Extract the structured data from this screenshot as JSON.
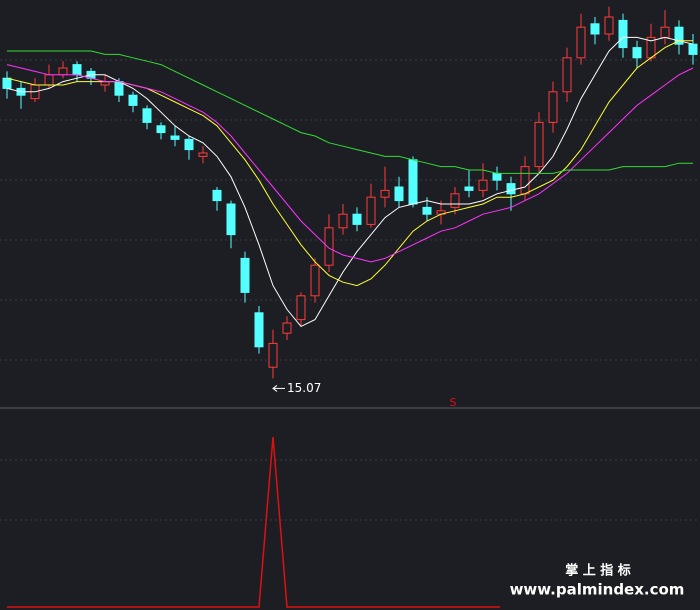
{
  "chart_data": {
    "type": "candlestick",
    "ylim": [
      14.2,
      26.2
    ],
    "up_color": "#ff3b3b",
    "down_color": "#54ffff",
    "open": [
      23.9,
      23.6,
      23.3,
      23.7,
      24.0,
      24.3,
      24.1,
      23.7,
      23.8,
      23.4,
      23.0,
      22.5,
      22.2,
      22.1,
      21.6,
      20.6,
      20.2,
      18.6,
      17.0,
      15.4,
      16.4,
      16.8,
      17.5,
      18.4,
      19.5,
      19.9,
      19.6,
      20.4,
      20.7,
      21.5,
      20.1,
      19.9,
      20.1,
      20.7,
      20.6,
      21.1,
      20.8,
      20.5,
      21.3,
      22.6,
      23.5,
      24.5,
      25.5,
      25.2,
      25.6,
      24.8,
      24.5,
      25.1,
      25.4,
      24.9
    ],
    "high": [
      24.1,
      23.8,
      23.9,
      24.3,
      24.4,
      24.4,
      24.2,
      24.0,
      23.9,
      23.5,
      23.1,
      22.6,
      22.5,
      22.2,
      21.9,
      20.7,
      20.3,
      18.8,
      17.2,
      16.5,
      16.9,
      17.6,
      18.6,
      19.9,
      20.2,
      20.1,
      20.8,
      21.3,
      21.0,
      21.6,
      20.4,
      20.3,
      20.7,
      21.2,
      21.4,
      21.3,
      21.0,
      21.6,
      22.9,
      23.8,
      24.8,
      25.8,
      25.7,
      26.0,
      25.8,
      25.0,
      25.5,
      25.9,
      25.6,
      25.2
    ],
    "low": [
      23.3,
      23.0,
      23.2,
      23.6,
      23.9,
      23.8,
      23.7,
      23.5,
      23.2,
      22.9,
      22.4,
      22.1,
      21.9,
      21.5,
      21.4,
      20.0,
      18.9,
      17.3,
      15.8,
      15.07,
      16.2,
      16.6,
      17.3,
      18.2,
      19.3,
      19.4,
      19.5,
      20.1,
      20.1,
      20.1,
      19.7,
      19.6,
      19.9,
      20.4,
      20.4,
      20.6,
      20.0,
      20.3,
      21.1,
      22.3,
      23.2,
      24.3,
      24.9,
      25.0,
      24.5,
      24.2,
      24.4,
      24.9,
      24.6,
      24.3
    ],
    "close": [
      23.6,
      23.4,
      23.7,
      24.0,
      24.2,
      24.0,
      23.9,
      23.8,
      23.4,
      23.1,
      22.6,
      22.3,
      22.1,
      21.8,
      21.7,
      20.3,
      19.3,
      17.6,
      16.0,
      16.1,
      16.7,
      17.5,
      18.4,
      19.5,
      19.9,
      19.6,
      20.4,
      20.6,
      20.3,
      20.2,
      19.9,
      20.0,
      20.5,
      20.6,
      20.9,
      20.9,
      20.5,
      21.3,
      22.6,
      23.5,
      24.5,
      25.4,
      25.2,
      25.7,
      24.8,
      24.5,
      25.1,
      25.4,
      24.9,
      24.6
    ],
    "series": [
      {
        "color": "#ffffff",
        "values": [
          23.6,
          23.5,
          23.5,
          23.6,
          23.8,
          23.9,
          24.0,
          24.0,
          23.8,
          23.6,
          23.3,
          22.9,
          22.5,
          22.2,
          22.0,
          21.6,
          21.0,
          20.1,
          19.0,
          17.8,
          17.1,
          16.6,
          16.8,
          17.5,
          18.2,
          18.8,
          19.3,
          19.8,
          20.1,
          20.2,
          20.3,
          20.2,
          20.2,
          20.2,
          20.3,
          20.5,
          20.6,
          20.7,
          21.1,
          21.6,
          22.4,
          23.3,
          24.0,
          24.7,
          25.1,
          25.1,
          25.0,
          25.1,
          25.0,
          24.9
        ]
      },
      {
        "color": "#ffff33",
        "values": [
          23.9,
          23.8,
          23.7,
          23.7,
          23.7,
          23.8,
          23.8,
          23.8,
          23.8,
          23.7,
          23.6,
          23.4,
          23.2,
          23.0,
          22.8,
          22.5,
          22.0,
          21.5,
          20.9,
          20.2,
          19.6,
          19.0,
          18.5,
          18.1,
          17.9,
          17.8,
          18.0,
          18.4,
          18.9,
          19.4,
          19.7,
          19.9,
          20.0,
          20.1,
          20.2,
          20.4,
          20.4,
          20.5,
          20.7,
          20.9,
          21.3,
          21.8,
          22.5,
          23.2,
          23.7,
          24.2,
          24.5,
          24.8,
          25.0,
          25.0
        ]
      },
      {
        "color": "#ff33ff",
        "values": [
          24.3,
          24.2,
          24.1,
          24.0,
          24.0,
          24.0,
          23.9,
          23.8,
          23.8,
          23.7,
          23.6,
          23.5,
          23.3,
          23.1,
          22.9,
          22.6,
          22.2,
          21.7,
          21.2,
          20.7,
          20.2,
          19.7,
          19.3,
          18.9,
          18.7,
          18.6,
          18.5,
          18.6,
          18.8,
          19.0,
          19.2,
          19.4,
          19.5,
          19.7,
          19.9,
          20.0,
          20.1,
          20.3,
          20.5,
          20.8,
          21.1,
          21.5,
          21.9,
          22.3,
          22.7,
          23.1,
          23.4,
          23.7,
          24.0,
          24.2
        ]
      },
      {
        "color": "#33dd33",
        "values": [
          24.7,
          24.7,
          24.7,
          24.7,
          24.7,
          24.7,
          24.7,
          24.6,
          24.6,
          24.5,
          24.4,
          24.3,
          24.1,
          23.9,
          23.7,
          23.5,
          23.3,
          23.1,
          22.9,
          22.7,
          22.5,
          22.3,
          22.2,
          22.0,
          21.9,
          21.8,
          21.7,
          21.6,
          21.6,
          21.5,
          21.4,
          21.3,
          21.3,
          21.2,
          21.2,
          21.1,
          21.1,
          21.1,
          21.1,
          21.1,
          21.2,
          21.2,
          21.2,
          21.2,
          21.3,
          21.3,
          21.3,
          21.3,
          21.4,
          21.4
        ]
      }
    ],
    "signal": {
      "color": "#e01010",
      "label": "S",
      "ylim": [
        0,
        1.1
      ],
      "values": [
        0,
        0,
        0,
        0,
        0,
        0,
        0,
        0,
        0,
        0,
        0,
        0,
        0,
        0,
        0,
        0,
        0,
        0,
        0,
        1,
        0,
        0,
        0,
        0,
        0,
        0,
        0,
        0,
        0,
        0,
        0,
        0,
        0,
        0,
        0,
        0,
        0,
        0,
        0,
        0,
        0,
        0,
        0,
        0,
        0,
        0,
        0,
        0,
        0,
        0
      ]
    }
  },
  "watermark": {
    "title": "掌 上 指 标",
    "url": "www.palmindex.com"
  }
}
